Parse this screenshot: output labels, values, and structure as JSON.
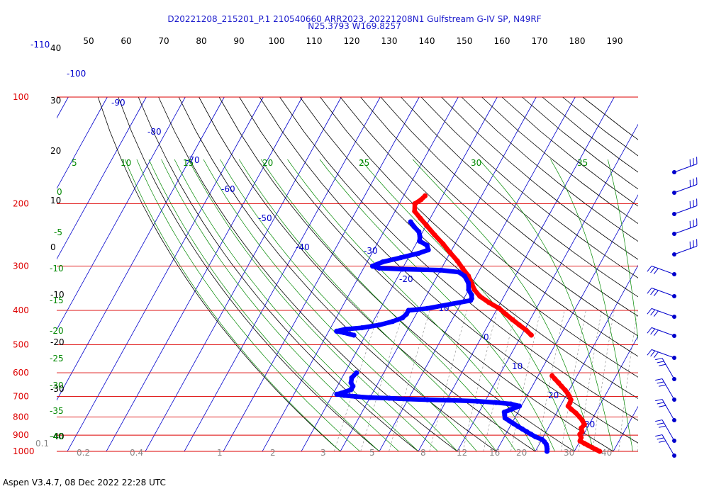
{
  "header": {
    "title_line1": "D20221208_215201_P.1 210540660 ARR2023, 20221208N1 Gulfstream G-IV SP, N49RF",
    "title_line2": "N25.3793 W169.8257"
  },
  "footer": {
    "text": "Aspen V3.4.7, 08 Dec 2022  22:28 UTC"
  },
  "colors": {
    "isobar": "#dd0000",
    "isotherm": "#0000cc",
    "dry_adiabat": "#000000",
    "moist_adiabat": "#008800",
    "mixing_ratio": "#888888",
    "temperature": "#ff0000",
    "dewpoint": "#0000ff"
  },
  "chart_data": {
    "type": "skew-t",
    "axes": {
      "pressure_hPa": {
        "ticks": [
          {
            "value": 100,
            "label": "100"
          },
          {
            "value": 200,
            "label": "200"
          },
          {
            "value": 300,
            "label": "300"
          },
          {
            "value": 400,
            "label": "400"
          },
          {
            "value": 500,
            "label": "500"
          },
          {
            "value": 600,
            "label": "600"
          },
          {
            "value": 700,
            "label": "700"
          },
          {
            "value": 800,
            "label": "800"
          },
          {
            "value": 900,
            "label": "900"
          },
          {
            "value": 1000,
            "label": "1000"
          }
        ],
        "scale": "log"
      },
      "top_scale_label": "-110",
      "top_ticks": [
        "50",
        "60",
        "70",
        "80",
        "90",
        "100",
        "110",
        "120",
        "130",
        "140",
        "150",
        "160",
        "170",
        "180",
        "190"
      ],
      "left_black_labels": [
        {
          "value": 40,
          "label": "40"
        },
        {
          "value": 30,
          "label": "30"
        },
        {
          "value": 20,
          "label": "20"
        },
        {
          "value": 10,
          "label": "10"
        },
        {
          "value": 0,
          "label": "0"
        },
        {
          "value": -10,
          "label": "-10"
        },
        {
          "value": -20,
          "label": "-20"
        },
        {
          "value": -30,
          "label": "-30"
        },
        {
          "value": -40,
          "label": "-40"
        }
      ],
      "green_labels": [
        "0",
        "-5",
        "-10",
        "-15",
        "-20",
        "-25",
        "-30",
        "-35",
        "-40",
        "5",
        "10",
        "15",
        "20",
        "25",
        "30",
        "35"
      ],
      "mixing_ratio_labels": [
        "0.1",
        "0.2",
        "0.4",
        "1",
        "2",
        "3",
        "5",
        "8",
        "12",
        "16",
        "20",
        "30",
        "40"
      ],
      "isotherm_labels": [
        "-100",
        "-90",
        "-80",
        "-70",
        "-60",
        "-50",
        "-40",
        "-30",
        "-20",
        "-10",
        "0",
        "10",
        "20",
        "30"
      ]
    },
    "series": [
      {
        "name": "temperature",
        "points": [
          [
            1000,
            26.5
          ],
          [
            990,
            25.5
          ],
          [
            975,
            24.0
          ],
          [
            960,
            22.5
          ],
          [
            950,
            21.5
          ],
          [
            935,
            20.0
          ],
          [
            915,
            19.8
          ],
          [
            895,
            19.0
          ],
          [
            880,
            19.2
          ],
          [
            860,
            18.5
          ],
          [
            840,
            18.8
          ],
          [
            820,
            17.8
          ],
          [
            800,
            16.5
          ],
          [
            780,
            15.0
          ],
          [
            760,
            13.2
          ],
          [
            745,
            12.0
          ],
          [
            730,
            12.0
          ],
          [
            715,
            11.8
          ],
          [
            700,
            11.0
          ],
          [
            688,
            10.2
          ],
          [
            672,
            9.0
          ],
          [
            655,
            7.5
          ],
          [
            640,
            6.2
          ],
          [
            625,
            4.8
          ],
          [
            612,
            3.6
          ],
          [
            470,
            -7.5
          ],
          [
            455,
            -9.5
          ],
          [
            440,
            -12.0
          ],
          [
            425,
            -14.5
          ],
          [
            410,
            -17.0
          ],
          [
            395,
            -19.5
          ],
          [
            380,
            -23.0
          ],
          [
            365,
            -26.2
          ],
          [
            350,
            -28.5
          ],
          [
            335,
            -30.2
          ],
          [
            320,
            -32.0
          ],
          [
            305,
            -34.5
          ],
          [
            290,
            -37.0
          ],
          [
            275,
            -40.0
          ],
          [
            260,
            -43.0
          ],
          [
            245,
            -46.5
          ],
          [
            230,
            -50.0
          ],
          [
            220,
            -52.5
          ],
          [
            210,
            -55.0
          ],
          [
            200,
            -56.0
          ],
          [
            195,
            -55.0
          ],
          [
            190,
            -54.5
          ]
        ]
      },
      {
        "name": "dewpoint",
        "points": [
          [
            1000,
            13.0
          ],
          [
            985,
            12.7
          ],
          [
            970,
            12.3
          ],
          [
            955,
            11.8
          ],
          [
            940,
            11.0
          ],
          [
            925,
            10.0
          ],
          [
            910,
            8.0
          ],
          [
            895,
            6.5
          ],
          [
            880,
            5.0
          ],
          [
            865,
            3.5
          ],
          [
            850,
            2.0
          ],
          [
            835,
            0.5
          ],
          [
            820,
            -1.0
          ],
          [
            805,
            -2.5
          ],
          [
            790,
            -3.0
          ],
          [
            775,
            -3.5
          ],
          [
            760,
            -2.0
          ],
          [
            745,
            -0.5
          ],
          [
            735,
            -3.0
          ],
          [
            728,
            -7.0
          ],
          [
            722,
            -12.0
          ],
          [
            718,
            -18.0
          ],
          [
            715,
            -25.0
          ],
          [
            712,
            -30.0
          ],
          [
            708,
            -35.0
          ],
          [
            705,
            -40.0
          ],
          [
            700,
            -44.0
          ],
          [
            695,
            -47.0
          ],
          [
            690,
            -49.0
          ],
          [
            685,
            -48.0
          ],
          [
            670,
            -46.0
          ],
          [
            655,
            -46.0
          ],
          [
            640,
            -47.0
          ],
          [
            620,
            -47.5
          ],
          [
            600,
            -47.0
          ],
          [
            470,
            -53.0
          ],
          [
            462,
            -56.0
          ],
          [
            458,
            -58.0
          ],
          [
            452,
            -56.0
          ],
          [
            448,
            -52.0
          ],
          [
            440,
            -48.0
          ],
          [
            430,
            -45.0
          ],
          [
            420,
            -43.0
          ],
          [
            410,
            -42.5
          ],
          [
            400,
            -42.5
          ],
          [
            395,
            -38.0
          ],
          [
            375,
            -28.0
          ],
          [
            370,
            -28.0
          ],
          [
            362,
            -28.5
          ],
          [
            350,
            -30.0
          ],
          [
            335,
            -31.0
          ],
          [
            320,
            -33.0
          ],
          [
            312,
            -35.0
          ],
          [
            308,
            -40.0
          ],
          [
            306,
            -50.0
          ],
          [
            304,
            -56.0
          ],
          [
            300,
            -58.0
          ],
          [
            292,
            -56.0
          ],
          [
            284,
            -52.0
          ],
          [
            276,
            -48.0
          ],
          [
            270,
            -46.0
          ],
          [
            262,
            -47.0
          ],
          [
            255,
            -49.5
          ],
          [
            248,
            -50.0
          ],
          [
            240,
            -51.0
          ],
          [
            232,
            -53.0
          ],
          [
            225,
            -54.5
          ]
        ]
      }
    ],
    "wind_barbs": "shown at right"
  }
}
